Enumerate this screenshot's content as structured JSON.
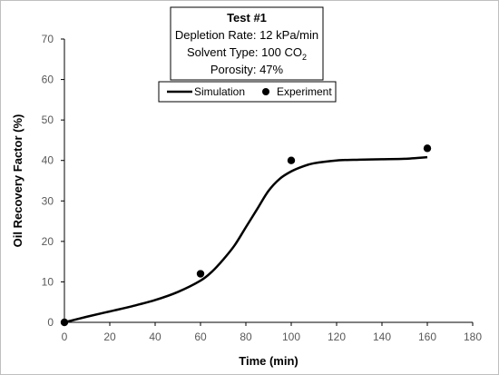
{
  "chart_data": {
    "type": "line",
    "xlabel": "Time (min)",
    "ylabel": "Oil Recovery Factor (%)",
    "xlim": [
      0,
      180
    ],
    "ylim": [
      0,
      70
    ],
    "xticks": [
      0,
      20,
      40,
      60,
      80,
      100,
      120,
      140,
      160,
      180
    ],
    "yticks": [
      0,
      10,
      20,
      30,
      40,
      50,
      60,
      70
    ],
    "grid": false,
    "legend_position": "top-center",
    "info_box": {
      "title": "Test #1",
      "depletion_rate": "Depletion Rate: 12 kPa/min",
      "solvent_prefix": "Solvent Type: 100 CO",
      "solvent_subscript": "2",
      "porosity": "Porosity: 47%"
    },
    "series": [
      {
        "name": "Simulation",
        "style": "line",
        "color": "#000000",
        "x": [
          0,
          10,
          20,
          30,
          40,
          50,
          60,
          65,
          70,
          75,
          80,
          85,
          90,
          95,
          100,
          105,
          110,
          120,
          130,
          140,
          150,
          160
        ],
        "y": [
          0,
          1.4,
          2.7,
          4.0,
          5.5,
          7.5,
          10.3,
          12.5,
          15.5,
          19.0,
          23.5,
          28.0,
          32.5,
          35.5,
          37.3,
          38.5,
          39.3,
          40.0,
          40.2,
          40.3,
          40.4,
          40.8
        ]
      },
      {
        "name": "Experiment",
        "style": "marker",
        "color": "#000000",
        "x": [
          0,
          60,
          100,
          160
        ],
        "y": [
          0,
          12,
          40,
          43
        ]
      }
    ]
  }
}
